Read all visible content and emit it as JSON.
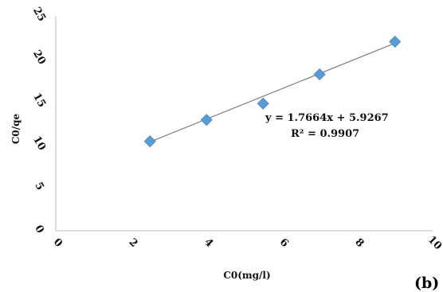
{
  "chart_data": {
    "type": "scatter",
    "title": "",
    "xlabel": "C0(mg/l)",
    "ylabel": "C0/qe",
    "xlim": [
      0,
      10
    ],
    "ylim": [
      0,
      25
    ],
    "x_ticks": [
      "0",
      "2",
      "4",
      "6",
      "8",
      "10"
    ],
    "y_ticks": [
      "0",
      "5",
      "10",
      "15",
      "20",
      "25"
    ],
    "grid": false,
    "series": [
      {
        "x": [
          2.5,
          4.0,
          5.5,
          7.0,
          9.0
        ],
        "y": [
          10.4,
          12.9,
          14.8,
          18.2,
          22.0
        ],
        "marker": "diamond",
        "color": "#5b9bd5"
      }
    ],
    "trendline": {
      "slope": 1.7664,
      "intercept": 5.9267,
      "x_range": [
        2.5,
        9.0
      ],
      "color": "#7f7f7f"
    },
    "annotations": [
      "y = 1.7664x + 5.9267",
      "R² = 0.9907"
    ],
    "panel_label": "(b)"
  }
}
